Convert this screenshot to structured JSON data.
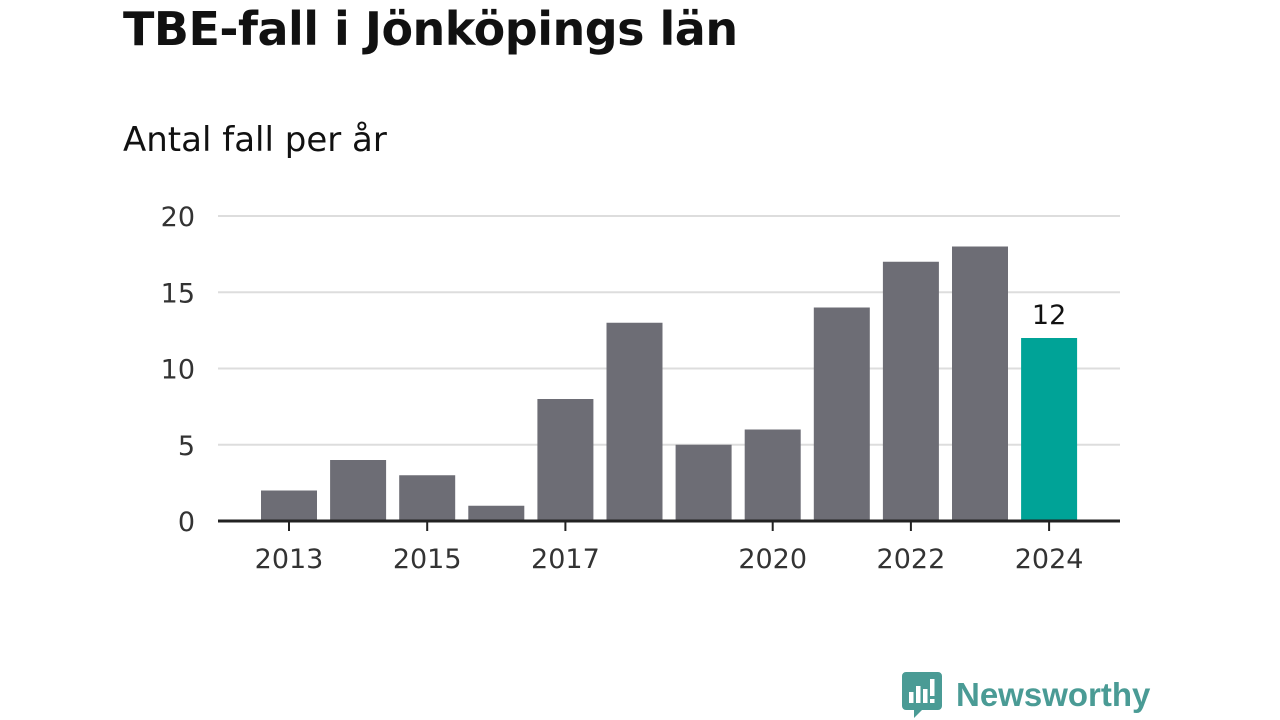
{
  "title": "TBE-fall i Jönköpings län",
  "subtitle": "Antal fall per år",
  "chart_data": {
    "type": "bar",
    "categories": [
      "2013",
      "2014",
      "2015",
      "2016",
      "2017",
      "2018",
      "2019",
      "2020",
      "2021",
      "2022",
      "2023",
      "2024"
    ],
    "values": [
      2,
      4,
      3,
      1,
      8,
      13,
      5,
      6,
      14,
      17,
      18,
      12
    ],
    "x_tick_labels": [
      "2013",
      "2015",
      "2017",
      "2020",
      "2022",
      "2024"
    ],
    "y_ticks": [
      0,
      5,
      10,
      15,
      20
    ],
    "ylim": [
      0,
      20
    ],
    "grid": true,
    "colors": {
      "default": "#6d6d75",
      "highlight": "#00a397",
      "gridline": "#dddddd",
      "axis": "#222222"
    },
    "highlight_category": "2024",
    "data_labels": [
      {
        "category": "2024",
        "text": "12"
      }
    ]
  },
  "branding": {
    "name": "Newsworthy",
    "icon": "newsworthy-logo-icon",
    "color": "#4a9b95"
  }
}
